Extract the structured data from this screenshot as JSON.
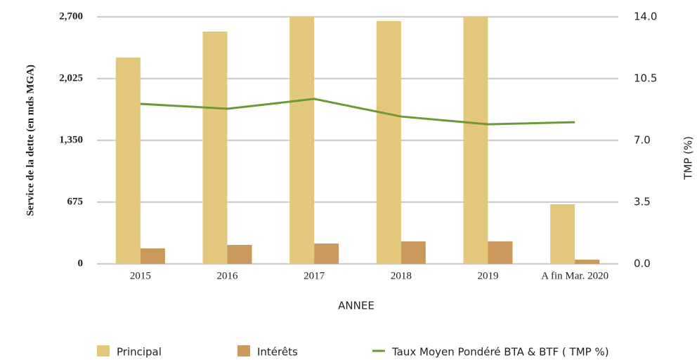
{
  "chart_data": {
    "type": "bar_line",
    "categories": [
      "2015",
      "2016",
      "2017",
      "2018",
      "2019",
      "A fin Mar. 2020"
    ],
    "x_label": "ANNEE",
    "y_label": "Service de la dette (en mds MGA)",
    "y2_label": "TMP (%)",
    "series": [
      {
        "name": "Principal",
        "type": "bar",
        "color": "#e3c77a",
        "values": [
          2255,
          2539,
          2700,
          2654,
          2700,
          652
        ]
      },
      {
        "name": "Intérêts",
        "type": "bar",
        "color": "#c9985a",
        "values": [
          169,
          207,
          222,
          245,
          245,
          46
        ]
      },
      {
        "name": "Taux Moyen Pondéré BTA & BTF ( TMP %)",
        "type": "line",
        "axis": "y2",
        "color": "#6b9a34",
        "values": [
          9.07,
          8.79,
          9.35,
          8.35,
          7.91,
          8.03
        ]
      }
    ],
    "ylim": [
      0,
      2700
    ],
    "yticks": [
      0,
      675,
      {
        "value": 1350,
        "label": "1,350"
      },
      {
        "value": 2025,
        "label": "2,025"
      },
      {
        "value": 2700,
        "label": "2,700"
      }
    ],
    "y2lim": [
      0,
      14
    ],
    "y2ticks": [
      {
        "value": 0,
        "label": "0.0"
      },
      {
        "value": 3.5,
        "label": "3.5"
      },
      {
        "value": 7,
        "label": "7.0"
      },
      {
        "value": 10.5,
        "label": "10.5"
      },
      {
        "value": 14,
        "label": "14.0"
      }
    ],
    "grid": true
  }
}
